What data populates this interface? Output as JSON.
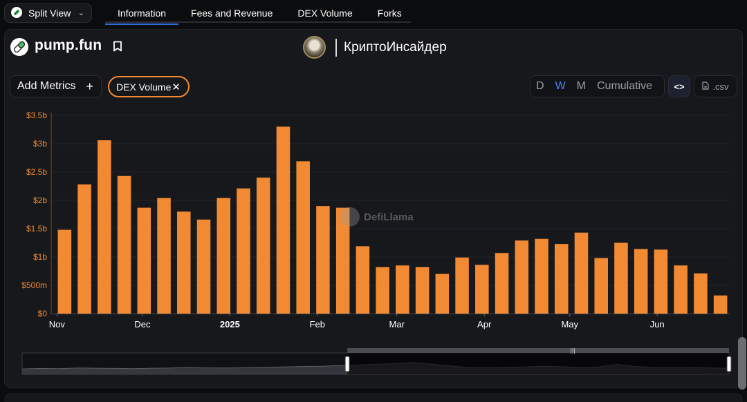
{
  "nav": {
    "split_view_label": "Split View",
    "tabs": [
      {
        "label": "Information",
        "active": true
      },
      {
        "label": "Fees and Revenue",
        "active": false
      },
      {
        "label": "DEX Volume",
        "active": false
      },
      {
        "label": "Forks",
        "active": false
      }
    ]
  },
  "header": {
    "project_name": "pump.fun",
    "author_name": "КриптоИнсайдер"
  },
  "controls": {
    "add_metrics_label": "Add Metrics",
    "metric_chip_label": "DEX Volume",
    "intervals": [
      "D",
      "W",
      "M",
      "Cumulative"
    ],
    "selected_interval": "W",
    "csv_label": ".csv",
    "embed_label": "<>"
  },
  "colors": {
    "bar": "#f28a33",
    "accent_blue": "#4b87f0",
    "chip_border": "#f28a33"
  },
  "watermark": "DefiLlama",
  "chart_data": {
    "type": "bar",
    "series": [
      {
        "values": [
          1.48,
          2.28,
          3.06,
          2.43,
          1.87,
          2.04,
          1.8,
          1.66,
          2.04,
          2.21,
          2.4,
          3.3,
          2.69,
          1.9,
          1.87,
          1.19,
          0.82,
          0.85,
          0.82,
          0.7,
          0.99,
          0.86,
          1.07,
          1.29,
          1.32,
          1.23,
          1.43,
          0.98,
          1.25,
          1.14,
          1.13,
          0.85,
          0.71,
          0.32
        ]
      }
    ],
    "unit": "$ billions",
    "ylim": [
      0,
      3.5
    ],
    "yticks": [
      {
        "value": 0,
        "label": "$0"
      },
      {
        "value": 0.5,
        "label": "$500m"
      },
      {
        "value": 1,
        "label": "$1b"
      },
      {
        "value": 1.5,
        "label": "$1.5b"
      },
      {
        "value": 2,
        "label": "$2b"
      },
      {
        "value": 2.5,
        "label": "$2.5b"
      },
      {
        "value": 3,
        "label": "$3b"
      },
      {
        "value": 3.5,
        "label": "$3.5b"
      }
    ],
    "xticks": [
      {
        "index": 0,
        "label": "Nov",
        "bold": false
      },
      {
        "index": 4.3,
        "label": "Dec",
        "bold": false
      },
      {
        "index": 8.7,
        "label": "2025",
        "bold": true
      },
      {
        "index": 13.1,
        "label": "Feb",
        "bold": false
      },
      {
        "index": 17.1,
        "label": "Mar",
        "bold": false
      },
      {
        "index": 21.5,
        "label": "Apr",
        "bold": false
      },
      {
        "index": 25.8,
        "label": "May",
        "bold": false
      },
      {
        "index": 30.2,
        "label": "Jun",
        "bold": false
      }
    ],
    "grid": true,
    "brush": {
      "range_start_fraction": 0.46,
      "range_end_fraction": 1.0,
      "overview_values": [
        0.35,
        0.4,
        0.38,
        0.45,
        0.42,
        0.4,
        0.38,
        0.42,
        0.45,
        0.5,
        0.46,
        0.44,
        0.48,
        0.52,
        0.55,
        0.6,
        0.62,
        0.7,
        0.75,
        0.82,
        0.9,
        1.0,
        0.85,
        0.65,
        0.5,
        0.48,
        0.52,
        0.55,
        0.62,
        0.58,
        0.5,
        0.55,
        0.8,
        0.6,
        0.5,
        0.48,
        0.5,
        0.45,
        0.42
      ]
    }
  }
}
